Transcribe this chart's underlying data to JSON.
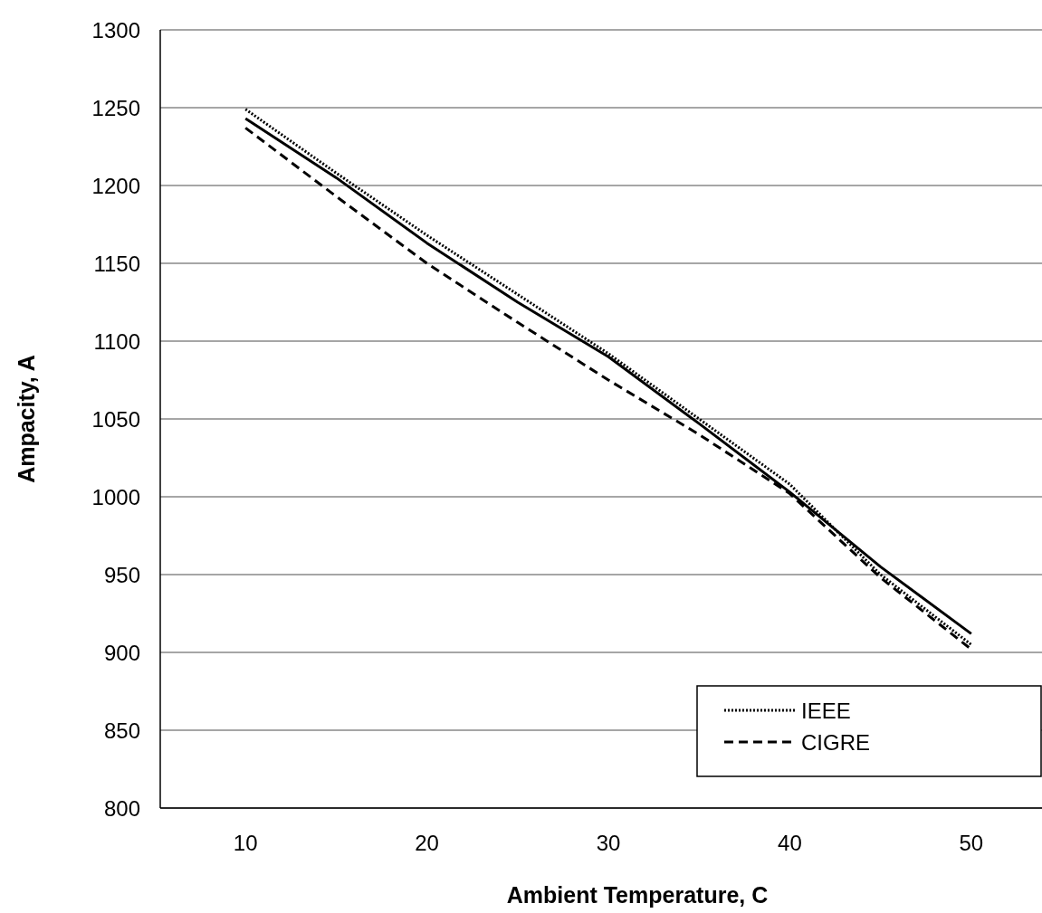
{
  "chart_data": {
    "type": "line",
    "xlabel": "Ambient Temperature, C",
    "ylabel": "Ampacity, A",
    "x": [
      10,
      15,
      20,
      25,
      30,
      35,
      40,
      45,
      50
    ],
    "xlim": [
      5.3,
      53.9
    ],
    "xticks": [
      10,
      20,
      30,
      40,
      50
    ],
    "ylim": [
      800,
      1300
    ],
    "yticks": [
      800,
      850,
      900,
      950,
      1000,
      1050,
      1100,
      1150,
      1200,
      1250,
      1300
    ],
    "grid": "y",
    "legend": "bottom right",
    "series": [
      {
        "color": "#000000",
        "line_style": "solid",
        "values": [
          1243,
          1205,
          1163,
          1125,
          1090,
          1047,
          1003,
          955,
          912
        ]
      },
      {
        "name": "IEEE",
        "color": "#000000",
        "line_style": "dotted",
        "values": [
          1249,
          1208,
          1168,
          1130,
          1092,
          1050,
          1008,
          950,
          905
        ]
      },
      {
        "name": "CIGRE",
        "color": "#000000",
        "line_style": "dashed",
        "values": [
          1237,
          1193,
          1150,
          1112,
          1075,
          1040,
          1002,
          948,
          902
        ]
      }
    ]
  }
}
